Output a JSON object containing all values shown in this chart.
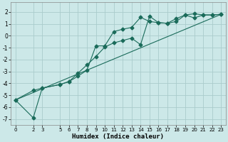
{
  "xlabel": "Humidex (Indice chaleur)",
  "background_color": "#cce8e8",
  "grid_color": "#aacccc",
  "line_color": "#1a6b5a",
  "xlim": [
    -0.5,
    23.5
  ],
  "ylim": [
    -7.5,
    2.8
  ],
  "yticks": [
    -7,
    -6,
    -5,
    -4,
    -3,
    -2,
    -1,
    0,
    1,
    2
  ],
  "xticks": [
    0,
    2,
    3,
    5,
    6,
    7,
    8,
    9,
    10,
    11,
    12,
    13,
    14,
    15,
    16,
    17,
    18,
    19,
    20,
    21,
    22,
    23
  ],
  "line1_x": [
    0,
    2,
    3,
    5,
    6,
    7,
    8,
    9,
    10,
    11,
    12,
    13,
    14,
    15,
    16,
    17,
    18,
    19,
    20,
    21,
    22,
    23
  ],
  "line1_y": [
    -5.4,
    -4.6,
    -4.4,
    -4.1,
    -3.85,
    -3.4,
    -2.9,
    -0.85,
    -0.85,
    0.35,
    0.55,
    0.7,
    1.55,
    1.2,
    1.1,
    1.05,
    1.45,
    1.75,
    1.85,
    1.75,
    1.75,
    1.8
  ],
  "line2_x": [
    0,
    2,
    3,
    5,
    6,
    7,
    8,
    9,
    10,
    11,
    12,
    13,
    14,
    15,
    16,
    17,
    18,
    19,
    20,
    21,
    22,
    23
  ],
  "line2_y": [
    -5.4,
    -6.9,
    -4.4,
    -4.1,
    -3.85,
    -3.15,
    -2.45,
    -1.75,
    -0.95,
    -0.6,
    -0.4,
    -0.2,
    -0.75,
    1.65,
    1.1,
    1.05,
    1.2,
    1.75,
    1.5,
    1.75,
    1.75,
    1.8
  ],
  "line3_x": [
    0,
    23
  ],
  "line3_y": [
    -5.4,
    1.8
  ]
}
